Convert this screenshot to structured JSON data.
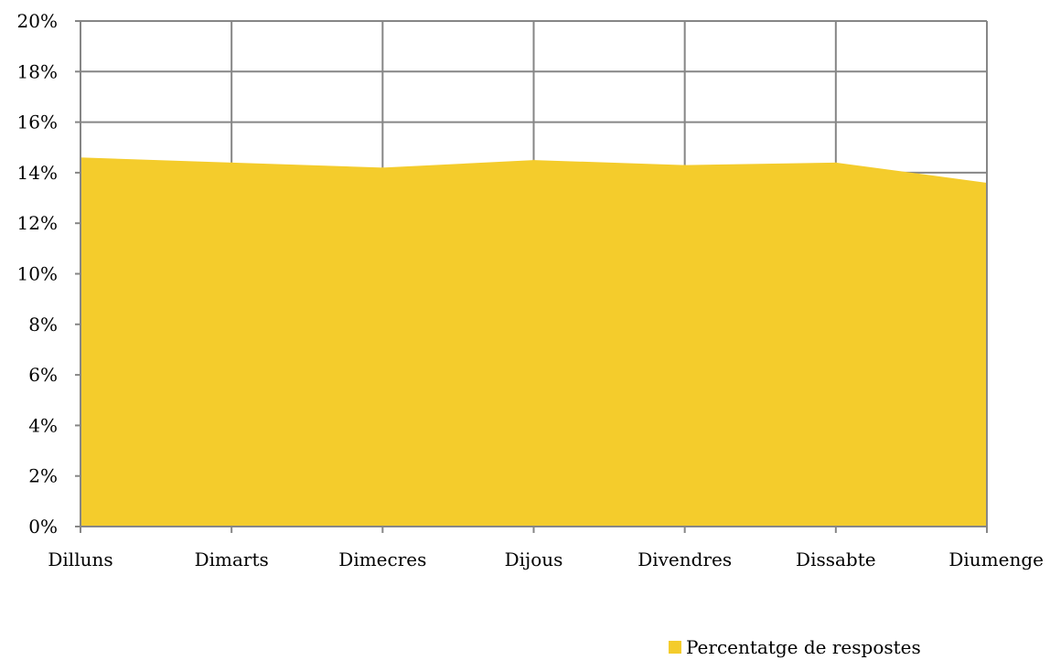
{
  "chart_data": {
    "type": "area",
    "categories": [
      "Dilluns",
      "Dimarts",
      "Dimecres",
      "Dijous",
      "Divendres",
      "Dissabte",
      "Diumenge"
    ],
    "series": [
      {
        "name": "Percentatge de respostes",
        "values": [
          14.6,
          14.4,
          14.2,
          14.5,
          14.3,
          14.4,
          13.6
        ],
        "color": "#f4cc2c"
      }
    ],
    "y_ticks": [
      "0%",
      "2%",
      "4%",
      "6%",
      "8%",
      "10%",
      "12%",
      "14%",
      "16%",
      "18%",
      "20%"
    ],
    "ylim": [
      0,
      20
    ],
    "y_unit": "%",
    "grid": true,
    "legend_position": "bottom-right"
  }
}
